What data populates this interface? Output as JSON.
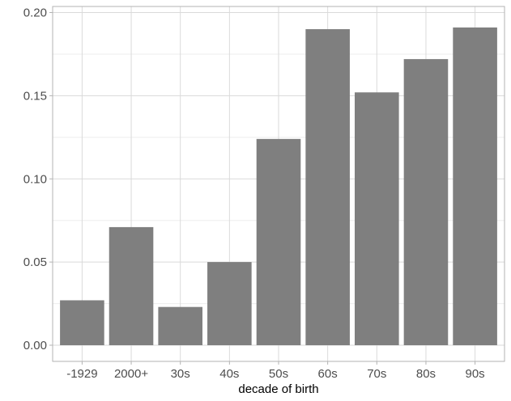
{
  "chart_data": {
    "type": "bar",
    "categories": [
      "-1929",
      "2000+",
      "30s",
      "40s",
      "50s",
      "60s",
      "70s",
      "80s",
      "90s"
    ],
    "values": [
      0.027,
      0.071,
      0.023,
      0.05,
      0.124,
      0.19,
      0.152,
      0.172,
      0.191
    ],
    "title": "",
    "xlabel": "decade of birth",
    "ylabel": "",
    "ylim": [
      0,
      0.2
    ],
    "yticks": [
      0.0,
      0.05,
      0.1,
      0.15,
      0.2
    ],
    "ytick_labels": [
      "0.00",
      "0.05",
      "0.10",
      "0.15",
      "0.20"
    ],
    "grid": true,
    "colors": {
      "bar": "#7f7f7f",
      "grid_major": "#dadada",
      "grid_minor": "#ededed",
      "panel_border": "#b3b3b3"
    }
  }
}
